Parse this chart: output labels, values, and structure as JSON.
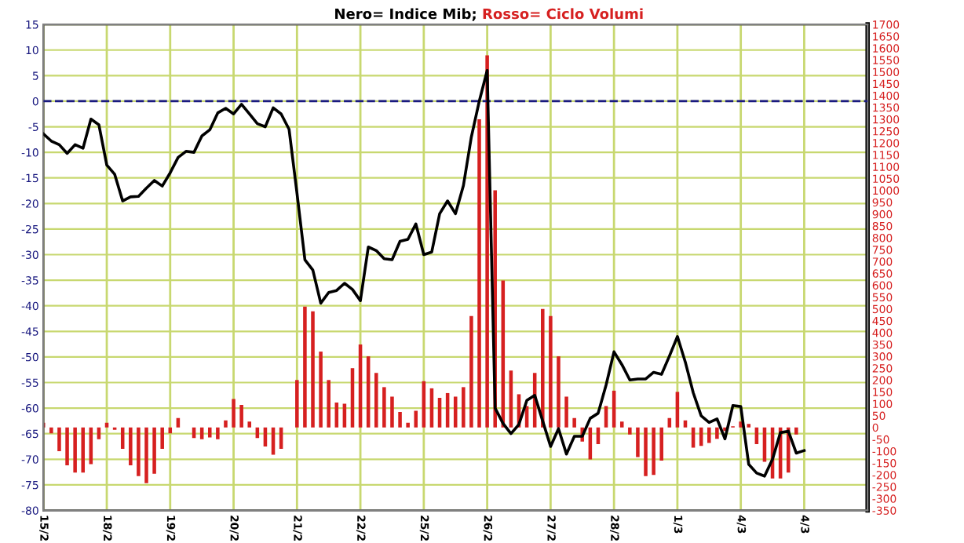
{
  "chart_data": {
    "type": "line",
    "title": "Nero= Indice Mib;",
    "subtitle": "Rosso= Ciclo Volumi",
    "categories": [
      "15/2",
      null,
      null,
      null,
      null,
      null,
      null,
      null,
      "18/2",
      null,
      null,
      null,
      null,
      null,
      null,
      null,
      "19/2",
      null,
      null,
      null,
      null,
      null,
      null,
      null,
      "20/2",
      null,
      null,
      null,
      null,
      null,
      null,
      null,
      "21/2",
      null,
      null,
      null,
      null,
      null,
      null,
      null,
      "22/2",
      null,
      null,
      null,
      null,
      null,
      null,
      null,
      "25/2",
      null,
      null,
      null,
      null,
      null,
      null,
      null,
      "26/2",
      null,
      null,
      null,
      null,
      null,
      null,
      null,
      "27/2",
      null,
      null,
      null,
      null,
      null,
      null,
      null,
      "28/2",
      null,
      null,
      null,
      null,
      null,
      null,
      null,
      "1/3",
      null,
      null,
      null,
      null,
      null,
      null,
      null,
      "4/3",
      null,
      null,
      null,
      null,
      null,
      null,
      null,
      "4/3",
      null,
      null,
      null,
      null,
      null,
      null,
      null
    ],
    "ylim": [
      -80,
      15
    ],
    "yticks": [
      -80,
      -75,
      -70,
      -65,
      -60,
      -55,
      -50,
      -45,
      -40,
      -35,
      -30,
      -25,
      -20,
      -15,
      -10,
      -5,
      0,
      5,
      10,
      15
    ],
    "y2lim": [
      -350,
      1700
    ],
    "y2ticks": [
      -350,
      -300,
      -250,
      -200,
      -150,
      -100,
      -50,
      0,
      50,
      100,
      150,
      200,
      250,
      300,
      350,
      400,
      450,
      500,
      550,
      600,
      650,
      700,
      750,
      800,
      850,
      900,
      950,
      1000,
      1050,
      1100,
      1150,
      1200,
      1250,
      1300,
      1350,
      1400,
      1450,
      1500,
      1550,
      1600,
      1650,
      1700
    ],
    "grid": true,
    "ref_lines": [
      {
        "axis": "y",
        "value": 0,
        "color": "#1a1a80",
        "line_style": "dashed"
      }
    ],
    "series": [
      {
        "type": "bar",
        "axis": "y2",
        "color": "#d62020",
        "values": [
          20,
          -25,
          -100,
          -160,
          -190,
          -190,
          -155,
          -50,
          20,
          -10,
          -90,
          -160,
          -205,
          -235,
          -195,
          -90,
          -25,
          40,
          0,
          -45,
          -50,
          -42,
          -50,
          30,
          120,
          95,
          25,
          -45,
          -80,
          -115,
          -90,
          0,
          200,
          510,
          490,
          320,
          200,
          105,
          100,
          250,
          350,
          300,
          230,
          170,
          130,
          65,
          20,
          70,
          195,
          165,
          125,
          145,
          130,
          170,
          470,
          1300,
          1570,
          1000,
          620,
          240,
          140,
          90,
          230,
          500,
          470,
          300,
          130,
          40,
          -60,
          -135,
          -70,
          90,
          155,
          25,
          -30,
          -125,
          -205,
          -200,
          -140,
          40,
          150,
          30,
          -85,
          -78,
          -65,
          -48,
          -15,
          5,
          25,
          15,
          -70,
          -145,
          -215,
          -215,
          -190,
          -30,
          0,
          null,
          null,
          null,
          null,
          null,
          null,
          null
        ]
      },
      {
        "color": "#000000",
        "values": [
          -6.4,
          -7.8,
          -8.5,
          -10.2,
          -8.5,
          -9.2,
          -3.5,
          -4.6,
          -12.5,
          -14.3,
          -19.5,
          -18.7,
          -18.6,
          -17,
          -15.5,
          -16.6,
          -14,
          -11,
          -9.8,
          -10,
          -6.8,
          -5.6,
          -2.3,
          -1.4,
          -2.5,
          -0.6,
          -2.5,
          -4.4,
          -5,
          -1.3,
          -2.5,
          -5.5,
          -18,
          -31,
          -33,
          -39.5,
          -37.4,
          -37,
          -35.6,
          -36.8,
          -39,
          -28.5,
          -29.2,
          -30.8,
          -31,
          -27.4,
          -27,
          -24,
          -30,
          -29.5,
          -22,
          -19.5,
          -22,
          -16.5,
          -7,
          0,
          6,
          -60,
          -63,
          -65,
          -63.2,
          -58.5,
          -57.5,
          -62.5,
          -67.5,
          -64,
          -69,
          -65.5,
          -65.5,
          -62,
          -61,
          -55.5,
          -49,
          -51.5,
          -54.5,
          -54.3,
          -54.3,
          -53,
          -53.4,
          -49.8,
          -46,
          -51,
          -57,
          -61.5,
          -62.8,
          -62.1,
          -66,
          -59.5,
          -59.7,
          -71,
          -72.7,
          -73.3,
          -70,
          -64.8,
          -64.5,
          -68.8,
          -68.3,
          null,
          null,
          null,
          null,
          null,
          null,
          null
        ]
      }
    ]
  }
}
